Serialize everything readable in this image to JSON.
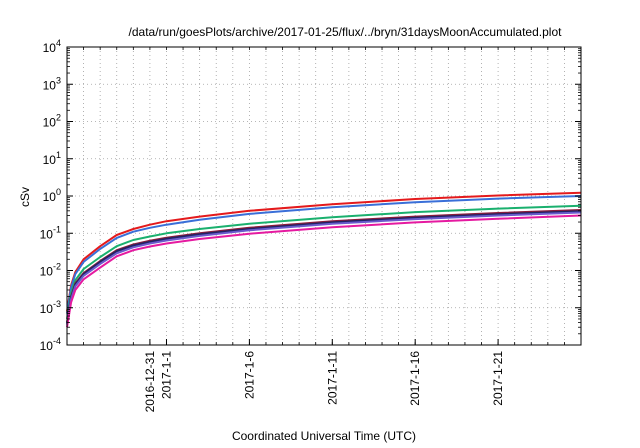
{
  "chart_data": {
    "type": "line",
    "title": "/data/run/goesPlots/archive/2017-01-25/flux/../bryn/31daysMoonAccumulated.plot",
    "xlabel": "Coordinated Universal Time (UTC)",
    "ylabel": "cSv",
    "yscale": "log",
    "ylim": [
      0.0001,
      10000
    ],
    "xlim": [
      "2016-12-26",
      "2017-01-26"
    ],
    "y_ticks": [
      {
        "base": "10",
        "exp": "-4",
        "value": 0.0001
      },
      {
        "base": "10",
        "exp": "-3",
        "value": 0.001
      },
      {
        "base": "10",
        "exp": "-2",
        "value": 0.01
      },
      {
        "base": "10",
        "exp": "-1",
        "value": 0.1
      },
      {
        "base": "10",
        "exp": "0",
        "value": 1
      },
      {
        "base": "10",
        "exp": "1",
        "value": 10
      },
      {
        "base": "10",
        "exp": "2",
        "value": 100
      },
      {
        "base": "10",
        "exp": "3",
        "value": 1000
      },
      {
        "base": "10",
        "exp": "4",
        "value": 10000
      }
    ],
    "x_ticks": [
      {
        "label": "2016-12-31",
        "date": "2016-12-31"
      },
      {
        "label": "2017-1-1",
        "date": "2017-01-01"
      },
      {
        "label": "2017-1-6",
        "date": "2017-01-06"
      },
      {
        "label": "2017-1-11",
        "date": "2017-01-11"
      },
      {
        "label": "2017-1-16",
        "date": "2017-01-16"
      },
      {
        "label": "2017-1-21",
        "date": "2017-01-21"
      }
    ],
    "grid": true,
    "legend": "none",
    "series": [
      {
        "color": "#e41a1c",
        "x": [
          "2016-12-26",
          "2016-12-26T06:00",
          "2016-12-26T12:00",
          "2016-12-27",
          "2016-12-28",
          "2016-12-29",
          "2016-12-30",
          "2016-12-31",
          "2017-01-01",
          "2017-01-03",
          "2017-01-06",
          "2017-01-11",
          "2017-01-16",
          "2017-01-21",
          "2017-01-26"
        ],
        "values": [
          0.0008,
          0.004,
          0.009,
          0.02,
          0.045,
          0.09,
          0.13,
          0.17,
          0.21,
          0.28,
          0.4,
          0.6,
          0.83,
          1.03,
          1.22
        ]
      },
      {
        "color": "#3a6fd8",
        "x": [
          "2016-12-26",
          "2016-12-26T06:00",
          "2016-12-26T12:00",
          "2016-12-27",
          "2016-12-28",
          "2016-12-29",
          "2016-12-30",
          "2016-12-31",
          "2017-01-01",
          "2017-01-03",
          "2017-01-06",
          "2017-01-11",
          "2017-01-16",
          "2017-01-21",
          "2017-01-26"
        ],
        "values": [
          0.0007,
          0.0035,
          0.008,
          0.017,
          0.038,
          0.075,
          0.11,
          0.14,
          0.17,
          0.23,
          0.33,
          0.5,
          0.68,
          0.85,
          1.0
        ]
      },
      {
        "color": "#1ab06e",
        "x": [
          "2016-12-26",
          "2016-12-26T06:00",
          "2016-12-26T12:00",
          "2016-12-27",
          "2016-12-28",
          "2016-12-29",
          "2016-12-30",
          "2016-12-31",
          "2017-01-01",
          "2017-01-03",
          "2017-01-06",
          "2017-01-11",
          "2017-01-16",
          "2017-01-21",
          "2017-01-26"
        ],
        "values": [
          0.0005,
          0.0025,
          0.0055,
          0.011,
          0.023,
          0.045,
          0.066,
          0.082,
          0.1,
          0.13,
          0.18,
          0.27,
          0.37,
          0.46,
          0.55
        ]
      },
      {
        "color": "#8c1d3a",
        "x": [
          "2016-12-26",
          "2016-12-26T06:00",
          "2016-12-26T12:00",
          "2016-12-27",
          "2016-12-28",
          "2016-12-29",
          "2016-12-30",
          "2016-12-31",
          "2017-01-01",
          "2017-01-03",
          "2017-01-06",
          "2017-01-11",
          "2017-01-16",
          "2017-01-21",
          "2017-01-26"
        ],
        "values": [
          0.0004,
          0.002,
          0.0045,
          0.0085,
          0.018,
          0.035,
          0.05,
          0.063,
          0.076,
          0.1,
          0.14,
          0.21,
          0.28,
          0.35,
          0.42
        ]
      },
      {
        "color": "#222266",
        "x": [
          "2016-12-26",
          "2016-12-26T06:00",
          "2016-12-26T12:00",
          "2016-12-27",
          "2016-12-28",
          "2016-12-29",
          "2016-12-30",
          "2016-12-31",
          "2017-01-01",
          "2017-01-03",
          "2017-01-06",
          "2017-01-11",
          "2017-01-16",
          "2017-01-21",
          "2017-01-26"
        ],
        "values": [
          0.00038,
          0.0019,
          0.0042,
          0.008,
          0.017,
          0.033,
          0.047,
          0.059,
          0.071,
          0.094,
          0.13,
          0.195,
          0.26,
          0.325,
          0.39
        ]
      },
      {
        "color": "#6a5acd",
        "x": [
          "2016-12-26",
          "2016-12-26T06:00",
          "2016-12-26T12:00",
          "2016-12-27",
          "2016-12-28",
          "2016-12-29",
          "2016-12-30",
          "2016-12-31",
          "2017-01-01",
          "2017-01-03",
          "2017-01-06",
          "2017-01-11",
          "2017-01-16",
          "2017-01-21",
          "2017-01-26"
        ],
        "values": [
          0.00035,
          0.0017,
          0.0038,
          0.0072,
          0.015,
          0.029,
          0.042,
          0.053,
          0.064,
          0.085,
          0.12,
          0.18,
          0.24,
          0.3,
          0.36
        ]
      },
      {
        "color": "#e51aa0",
        "x": [
          "2016-12-26",
          "2016-12-26T06:00",
          "2016-12-26T12:00",
          "2016-12-27",
          "2016-12-28",
          "2016-12-29",
          "2016-12-30",
          "2016-12-31",
          "2017-01-01",
          "2017-01-03",
          "2017-01-06",
          "2017-01-11",
          "2017-01-16",
          "2017-01-21",
          "2017-01-26"
        ],
        "values": [
          0.0003,
          0.0014,
          0.003,
          0.0058,
          0.012,
          0.024,
          0.035,
          0.044,
          0.053,
          0.07,
          0.097,
          0.145,
          0.195,
          0.245,
          0.3
        ]
      }
    ]
  }
}
